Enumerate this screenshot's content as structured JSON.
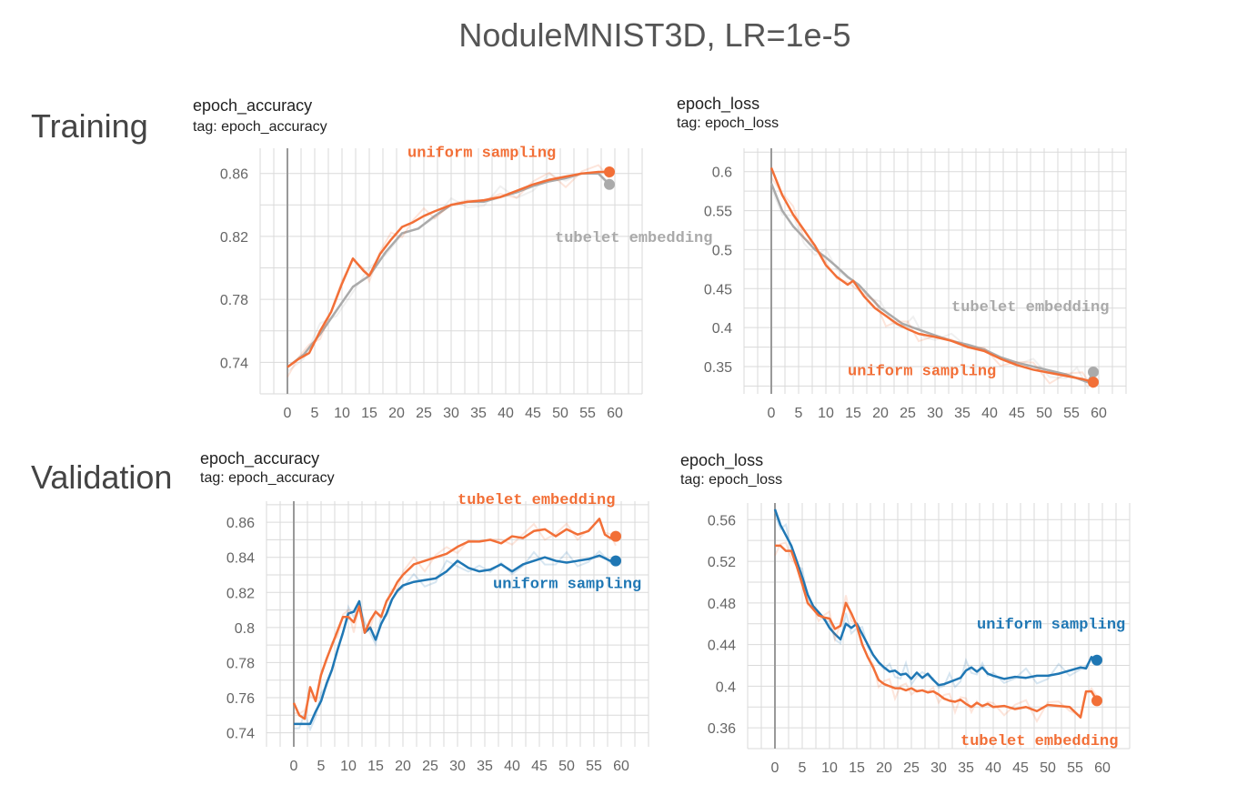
{
  "title": "NoduleMNIST3D, LR=1e-5",
  "row_labels": {
    "training": "Training",
    "validation": "Validation"
  },
  "colors": {
    "orange": "#f26f37",
    "gray": "#aaaaaa",
    "blue": "#1f77b4"
  },
  "chart_data": [
    {
      "id": "train_acc",
      "type": "line",
      "title": "epoch_accuracy",
      "tag": "tag: epoch_accuracy",
      "xlim": [
        -5,
        65
      ],
      "ylim": [
        0.72,
        0.876
      ],
      "xticks": [
        0,
        5,
        10,
        15,
        20,
        25,
        30,
        35,
        40,
        45,
        50,
        55,
        60
      ],
      "yticks": [
        {
          "v": 0.74,
          "t": "0.74"
        },
        {
          "v": 0.78,
          "t": "0.78"
        },
        {
          "v": 0.82,
          "t": "0.82"
        },
        {
          "v": 0.86,
          "t": "0.86"
        }
      ],
      "annotations": [
        {
          "text": "uniform sampling",
          "color": "orange",
          "x": 22,
          "y": 0.8705
        },
        {
          "text": "tubelet embedding",
          "color": "gray",
          "x": 49,
          "y": 0.8165
        }
      ],
      "series": [
        {
          "color": "gray",
          "end_x": 59,
          "end_y": 0.853,
          "x": [
            0,
            3,
            6,
            9,
            12,
            15,
            18,
            21,
            24,
            27,
            30,
            33,
            36,
            39,
            42,
            45,
            48,
            51,
            54,
            57,
            59
          ],
          "y": [
            0.737,
            0.745,
            0.758,
            0.773,
            0.788,
            0.795,
            0.81,
            0.822,
            0.825,
            0.833,
            0.84,
            0.842,
            0.842,
            0.845,
            0.848,
            0.852,
            0.855,
            0.857,
            0.86,
            0.86,
            0.853
          ]
        },
        {
          "color": "orange",
          "end_x": 59,
          "end_y": 0.861,
          "x": [
            0,
            2,
            4,
            6,
            8,
            10,
            12,
            14,
            15,
            17,
            19,
            21,
            23,
            25,
            27,
            30,
            33,
            36,
            39,
            42,
            45,
            48,
            51,
            54,
            57,
            59
          ],
          "y": [
            0.737,
            0.742,
            0.746,
            0.76,
            0.772,
            0.79,
            0.806,
            0.798,
            0.795,
            0.809,
            0.818,
            0.826,
            0.829,
            0.833,
            0.836,
            0.84,
            0.842,
            0.843,
            0.845,
            0.849,
            0.853,
            0.856,
            0.858,
            0.86,
            0.861,
            0.861
          ]
        }
      ]
    },
    {
      "id": "train_loss",
      "type": "line",
      "title": "epoch_loss",
      "tag": "tag: epoch_loss",
      "xlim": [
        -5,
        65
      ],
      "ylim": [
        0.315,
        0.63
      ],
      "xticks": [
        0,
        5,
        10,
        15,
        20,
        25,
        30,
        35,
        40,
        45,
        50,
        55,
        60
      ],
      "yticks": [
        {
          "v": 0.35,
          "t": "0.35"
        },
        {
          "v": 0.4,
          "t": "0.4"
        },
        {
          "v": 0.45,
          "t": "0.45"
        },
        {
          "v": 0.5,
          "t": "0.5"
        },
        {
          "v": 0.55,
          "t": "0.55"
        },
        {
          "v": 0.6,
          "t": "0.6"
        }
      ],
      "annotations": [
        {
          "text": "tubelet embedding",
          "color": "gray",
          "x": 33,
          "y": 0.421
        },
        {
          "text": "uniform sampling",
          "color": "orange",
          "x": 14,
          "y": 0.339
        }
      ],
      "series": [
        {
          "color": "gray",
          "end_x": 59,
          "end_y": 0.343,
          "x": [
            0,
            2,
            4,
            6,
            8,
            10,
            12,
            14,
            16,
            18,
            20,
            22,
            24,
            26,
            28,
            30,
            33,
            36,
            39,
            42,
            45,
            48,
            51,
            54,
            56,
            58,
            59
          ],
          "y": [
            0.585,
            0.55,
            0.53,
            0.515,
            0.5,
            0.49,
            0.478,
            0.465,
            0.455,
            0.44,
            0.425,
            0.415,
            0.405,
            0.4,
            0.395,
            0.39,
            0.383,
            0.378,
            0.372,
            0.362,
            0.355,
            0.35,
            0.345,
            0.34,
            0.335,
            0.33,
            0.343
          ]
        },
        {
          "color": "orange",
          "end_x": 59,
          "end_y": 0.33,
          "x": [
            0,
            2,
            4,
            6,
            8,
            10,
            12,
            14,
            15,
            17,
            19,
            21,
            23,
            25,
            27,
            30,
            33,
            36,
            39,
            42,
            45,
            48,
            51,
            54,
            57,
            59
          ],
          "y": [
            0.605,
            0.57,
            0.545,
            0.525,
            0.505,
            0.48,
            0.465,
            0.455,
            0.46,
            0.44,
            0.425,
            0.415,
            0.405,
            0.398,
            0.392,
            0.388,
            0.383,
            0.375,
            0.37,
            0.36,
            0.352,
            0.346,
            0.342,
            0.338,
            0.334,
            0.33
          ]
        }
      ]
    },
    {
      "id": "val_acc",
      "type": "line",
      "title": "epoch_accuracy",
      "tag": "tag: epoch_accuracy",
      "xlim": [
        -5,
        65
      ],
      "ylim": [
        0.732,
        0.872
      ],
      "xticks": [
        0,
        5,
        10,
        15,
        20,
        25,
        30,
        35,
        40,
        45,
        50,
        55,
        60
      ],
      "yticks": [
        {
          "v": 0.74,
          "t": "0.74"
        },
        {
          "v": 0.76,
          "t": "0.76"
        },
        {
          "v": 0.78,
          "t": "0.78"
        },
        {
          "v": 0.8,
          "t": "0.8"
        },
        {
          "v": 0.82,
          "t": "0.82"
        },
        {
          "v": 0.84,
          "t": "0.84"
        },
        {
          "v": 0.86,
          "t": "0.86"
        }
      ],
      "annotations": [
        {
          "text": "tubelet embedding",
          "color": "orange",
          "x": 30,
          "y": 0.8705
        },
        {
          "text": "uniform sampling",
          "color": "blue",
          "x": 36.5,
          "y": 0.8225
        }
      ],
      "series": [
        {
          "color": "blue",
          "end_x": 59,
          "end_y": 0.838,
          "x": [
            0,
            1,
            2,
            3,
            4,
            5,
            6,
            7,
            8,
            9,
            10,
            11,
            12,
            13,
            14,
            15,
            16,
            17,
            18,
            19,
            20,
            22,
            24,
            26,
            28,
            30,
            32,
            34,
            36,
            38,
            40,
            42,
            44,
            46,
            48,
            50,
            52,
            54,
            56,
            58,
            59
          ],
          "y": [
            0.745,
            0.745,
            0.745,
            0.745,
            0.752,
            0.758,
            0.768,
            0.776,
            0.787,
            0.797,
            0.808,
            0.809,
            0.815,
            0.797,
            0.8,
            0.793,
            0.802,
            0.808,
            0.816,
            0.821,
            0.824,
            0.826,
            0.827,
            0.828,
            0.832,
            0.838,
            0.834,
            0.832,
            0.833,
            0.836,
            0.832,
            0.836,
            0.838,
            0.84,
            0.838,
            0.837,
            0.838,
            0.839,
            0.841,
            0.838,
            0.838
          ]
        },
        {
          "color": "orange",
          "end_x": 59,
          "end_y": 0.852,
          "x": [
            0,
            1,
            2,
            3,
            4,
            5,
            6,
            7,
            8,
            9,
            10,
            11,
            12,
            13,
            14,
            15,
            16,
            17,
            18,
            19,
            20,
            22,
            24,
            26,
            28,
            30,
            32,
            34,
            36,
            38,
            40,
            42,
            44,
            46,
            48,
            50,
            52,
            54,
            56,
            57,
            58,
            59
          ],
          "y": [
            0.757,
            0.75,
            0.748,
            0.766,
            0.758,
            0.773,
            0.782,
            0.79,
            0.798,
            0.806,
            0.806,
            0.803,
            0.812,
            0.797,
            0.804,
            0.809,
            0.806,
            0.815,
            0.82,
            0.826,
            0.83,
            0.836,
            0.838,
            0.84,
            0.842,
            0.846,
            0.849,
            0.849,
            0.85,
            0.848,
            0.852,
            0.851,
            0.855,
            0.856,
            0.852,
            0.856,
            0.853,
            0.855,
            0.862,
            0.853,
            0.851,
            0.852
          ]
        }
      ]
    },
    {
      "id": "val_loss",
      "type": "line",
      "title": "epoch_loss",
      "tag": "tag: epoch_loss",
      "xlim": [
        -5,
        65
      ],
      "ylim": [
        0.34,
        0.576
      ],
      "xticks": [
        0,
        5,
        10,
        15,
        20,
        25,
        30,
        35,
        40,
        45,
        50,
        55,
        60
      ],
      "yticks": [
        {
          "v": 0.36,
          "t": "0.36"
        },
        {
          "v": 0.4,
          "t": "0.4"
        },
        {
          "v": 0.44,
          "t": "0.44"
        },
        {
          "v": 0.48,
          "t": "0.48"
        },
        {
          "v": 0.52,
          "t": "0.52"
        },
        {
          "v": 0.56,
          "t": "0.56"
        }
      ],
      "annotations": [
        {
          "text": "uniform sampling",
          "color": "blue",
          "x": 37,
          "y": 0.4555
        },
        {
          "text": "tubelet embedding",
          "color": "orange",
          "x": 34,
          "y": 0.3435
        }
      ],
      "series": [
        {
          "color": "blue",
          "end_x": 59,
          "end_y": 0.425,
          "x": [
            0,
            1,
            2,
            3,
            4,
            5,
            6,
            7,
            8,
            9,
            10,
            11,
            12,
            13,
            14,
            15,
            16,
            17,
            18,
            19,
            20,
            21,
            22,
            23,
            24,
            25,
            26,
            27,
            28,
            29,
            30,
            31,
            32,
            33,
            34,
            35,
            36,
            37,
            38,
            39,
            40,
            42,
            44,
            46,
            48,
            50,
            52,
            54,
            56,
            57,
            58,
            59
          ],
          "y": [
            0.57,
            0.555,
            0.545,
            0.535,
            0.52,
            0.505,
            0.488,
            0.477,
            0.471,
            0.465,
            0.456,
            0.45,
            0.445,
            0.46,
            0.456,
            0.46,
            0.45,
            0.44,
            0.43,
            0.423,
            0.418,
            0.414,
            0.415,
            0.411,
            0.412,
            0.407,
            0.413,
            0.408,
            0.412,
            0.406,
            0.401,
            0.402,
            0.404,
            0.406,
            0.408,
            0.415,
            0.418,
            0.414,
            0.418,
            0.412,
            0.41,
            0.407,
            0.409,
            0.408,
            0.41,
            0.41,
            0.412,
            0.415,
            0.418,
            0.417,
            0.428,
            0.425
          ]
        },
        {
          "color": "orange",
          "end_x": 59,
          "end_y": 0.386,
          "x": [
            0,
            1,
            2,
            3,
            4,
            5,
            6,
            7,
            8,
            9,
            10,
            11,
            12,
            13,
            14,
            15,
            16,
            17,
            18,
            19,
            20,
            21,
            22,
            23,
            24,
            25,
            26,
            27,
            28,
            29,
            30,
            31,
            32,
            33,
            34,
            35,
            36,
            37,
            38,
            39,
            40,
            42,
            44,
            46,
            48,
            50,
            52,
            54,
            56,
            57,
            58,
            59
          ],
          "y": [
            0.535,
            0.535,
            0.53,
            0.53,
            0.515,
            0.498,
            0.48,
            0.474,
            0.468,
            0.466,
            0.465,
            0.455,
            0.458,
            0.48,
            0.47,
            0.458,
            0.44,
            0.428,
            0.418,
            0.406,
            0.402,
            0.4,
            0.398,
            0.398,
            0.396,
            0.398,
            0.395,
            0.396,
            0.394,
            0.395,
            0.392,
            0.388,
            0.386,
            0.385,
            0.387,
            0.383,
            0.38,
            0.384,
            0.381,
            0.383,
            0.38,
            0.381,
            0.378,
            0.38,
            0.376,
            0.382,
            0.381,
            0.38,
            0.37,
            0.395,
            0.395,
            0.386
          ]
        }
      ]
    }
  ]
}
